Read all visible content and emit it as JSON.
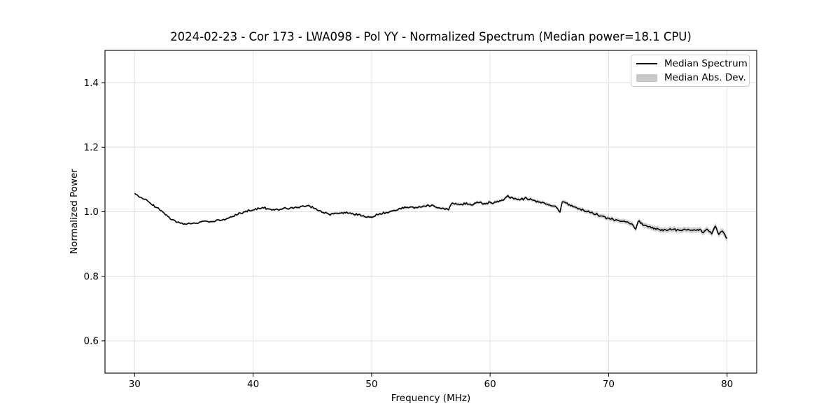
{
  "chart_data": {
    "type": "line",
    "title": "2024-02-23 - Cor 173 - LWA098 - Pol YY - Normalized Spectrum (Median power=18.1 CPU)",
    "xlabel": "Frequency (MHz)",
    "ylabel": "Normalized Power",
    "xlim": [
      27.5,
      82.5
    ],
    "ylim": [
      0.5,
      1.5
    ],
    "xticks": [
      30,
      40,
      50,
      60,
      70,
      80
    ],
    "yticks": [
      0.6,
      0.8,
      1.0,
      1.2,
      1.4
    ],
    "grid": true,
    "grid_color": "#e0e0e0",
    "background_color": "#ffffff",
    "legend": {
      "position": "upper right",
      "entries": [
        {
          "label": "Median Spectrum",
          "type": "line",
          "color": "#000000"
        },
        {
          "label": "Median Abs. Dev.",
          "type": "patch",
          "color": "#c9c9c9"
        }
      ]
    },
    "series": [
      {
        "name": "Median Spectrum",
        "color": "#000000",
        "line_width": 1.6,
        "x": [
          30.0,
          30.3,
          30.7,
          31.0,
          31.5,
          32.0,
          32.5,
          33.0,
          33.5,
          34.0,
          34.5,
          35.0,
          35.5,
          36.0,
          36.5,
          37.0,
          37.5,
          38.0,
          38.5,
          39.0,
          39.5,
          40.0,
          40.5,
          41.0,
          41.5,
          42.0,
          42.5,
          43.0,
          43.5,
          44.0,
          44.5,
          45.0,
          45.5,
          46.0,
          46.5,
          47.0,
          47.5,
          48.0,
          48.5,
          49.0,
          49.5,
          50.0,
          50.5,
          51.0,
          51.5,
          52.0,
          52.5,
          53.0,
          53.5,
          54.0,
          54.5,
          55.0,
          55.5,
          56.0,
          56.5,
          56.8,
          57.0,
          57.5,
          58.0,
          58.5,
          59.0,
          59.5,
          60.0,
          60.5,
          61.0,
          61.5,
          62.0,
          62.5,
          63.0,
          63.5,
          64.0,
          64.5,
          65.0,
          65.5,
          65.9,
          66.1,
          66.5,
          67.0,
          67.5,
          68.0,
          68.5,
          69.0,
          69.5,
          70.0,
          70.5,
          71.0,
          71.5,
          72.0,
          72.3,
          72.5,
          73.0,
          73.5,
          74.0,
          74.5,
          75.0,
          75.5,
          76.0,
          76.5,
          77.0,
          77.5,
          78.0,
          78.3,
          78.7,
          79.0,
          79.3,
          79.6,
          80.0
        ],
        "y": [
          1.057,
          1.048,
          1.04,
          1.036,
          1.022,
          1.01,
          0.995,
          0.978,
          0.968,
          0.963,
          0.962,
          0.965,
          0.968,
          0.97,
          0.968,
          0.972,
          0.975,
          0.982,
          0.99,
          0.996,
          1.002,
          1.005,
          1.01,
          1.012,
          1.006,
          1.006,
          1.009,
          1.01,
          1.013,
          1.016,
          1.018,
          1.014,
          1.005,
          0.997,
          0.992,
          0.995,
          0.997,
          0.996,
          0.993,
          0.99,
          0.981,
          0.984,
          0.991,
          0.996,
          1.0,
          1.005,
          1.01,
          1.014,
          1.012,
          1.015,
          1.018,
          1.02,
          1.012,
          1.012,
          1.007,
          1.028,
          1.024,
          1.022,
          1.026,
          1.022,
          1.028,
          1.025,
          1.028,
          1.03,
          1.035,
          1.048,
          1.042,
          1.038,
          1.041,
          1.037,
          1.032,
          1.028,
          1.022,
          1.018,
          1.0,
          1.032,
          1.025,
          1.016,
          1.01,
          1.003,
          0.998,
          0.992,
          0.985,
          0.979,
          0.975,
          0.972,
          0.968,
          0.962,
          0.946,
          0.972,
          0.958,
          0.952,
          0.947,
          0.942,
          0.944,
          0.946,
          0.941,
          0.946,
          0.941,
          0.946,
          0.936,
          0.946,
          0.934,
          0.955,
          0.93,
          0.942,
          0.916
        ]
      },
      {
        "name": "Median Abs. Dev.",
        "color": "#9e9e9e",
        "opacity": 0.45,
        "band_x": [
          30,
          40,
          50,
          55,
          60,
          65,
          70,
          74,
          78,
          80
        ],
        "band_half_width": [
          0.0025,
          0.003,
          0.004,
          0.0045,
          0.005,
          0.0055,
          0.007,
          0.0085,
          0.009,
          0.01
        ]
      }
    ],
    "noise": {
      "amplitude": 0.004,
      "sample_step_mhz": 0.1,
      "seed": 9
    }
  }
}
